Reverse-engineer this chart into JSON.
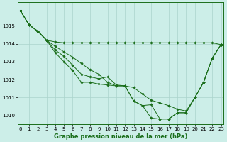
{
  "title": "Graphe pression niveau de la mer (hPa)",
  "hours": [
    0,
    1,
    2,
    3,
    4,
    5,
    6,
    7,
    8,
    9,
    10,
    11,
    12,
    13,
    14,
    15,
    16,
    17,
    18,
    19,
    20,
    21,
    22,
    23
  ],
  "series": [
    [
      1015.85,
      1015.05,
      1014.7,
      1014.2,
      1014.1,
      1014.05,
      1014.05,
      1014.05,
      1014.05,
      1014.05,
      1014.05,
      1014.05,
      1014.05,
      1014.05,
      1014.05,
      1014.05,
      1014.05,
      1014.05,
      1014.05,
      1014.05,
      1014.05,
      1014.05,
      1014.05,
      1013.95
    ],
    [
      1015.85,
      1015.05,
      1014.7,
      1014.2,
      1013.85,
      1013.55,
      1013.25,
      1012.9,
      1012.55,
      1012.3,
      1011.85,
      1011.65,
      1011.65,
      1011.55,
      1011.2,
      1010.85,
      1010.7,
      1010.55,
      1010.35,
      1010.25,
      1011.0,
      1011.85,
      1013.2,
      1013.95
    ],
    [
      1015.85,
      1015.05,
      1014.7,
      1014.2,
      1013.65,
      1013.3,
      1012.8,
      1012.3,
      1012.15,
      1012.05,
      1012.15,
      1011.7,
      1011.65,
      1010.8,
      1010.55,
      1010.6,
      1009.8,
      1009.8,
      1010.15,
      1010.15,
      1011.0,
      1011.85,
      1013.2,
      1013.95
    ],
    [
      1015.85,
      1015.05,
      1014.7,
      1014.2,
      1013.5,
      1013.0,
      1012.5,
      1011.85,
      1011.85,
      1011.75,
      1011.7,
      1011.65,
      1011.65,
      1010.8,
      1010.55,
      1009.85,
      1009.8,
      1009.8,
      1010.15,
      1010.15,
      1011.0,
      1011.85,
      1013.2,
      1013.95
    ]
  ],
  "line_color": "#1a6e1a",
  "bg_color": "#cceee8",
  "grid_color": "#aad4cc",
  "ylim": [
    1009.5,
    1016.3
  ],
  "yticks": [
    1010,
    1011,
    1012,
    1013,
    1014,
    1015
  ],
  "tick_fontsize": 5.0,
  "title_fontsize": 6.0
}
